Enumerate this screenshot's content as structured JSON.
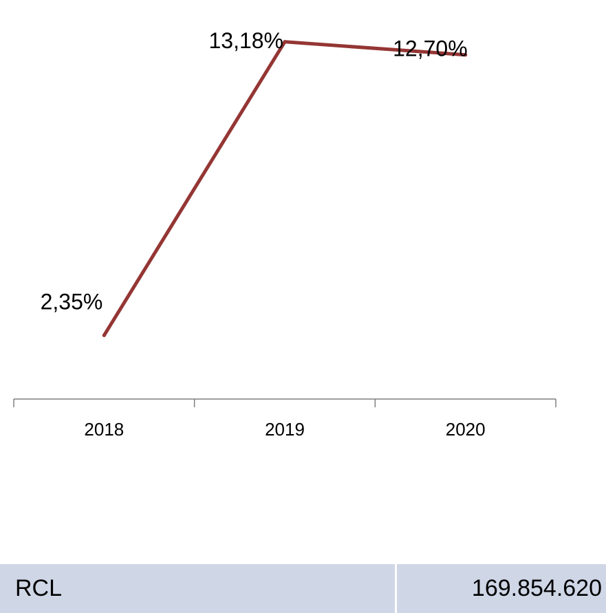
{
  "chart_data": {
    "type": "line",
    "categories": [
      "2018",
      "2019",
      "2020"
    ],
    "values": [
      2.35,
      13.18,
      12.7
    ],
    "data_labels": [
      "2,35%",
      "13,18%",
      "12,70%"
    ],
    "title": "",
    "xlabel": "",
    "ylabel": "",
    "ylim": [
      0,
      14
    ],
    "grid": false,
    "legend": "none",
    "line_color": "#943634"
  },
  "table": {
    "label": "RCL",
    "value": "169.854.620",
    "background_color": "#cfd6e6"
  }
}
